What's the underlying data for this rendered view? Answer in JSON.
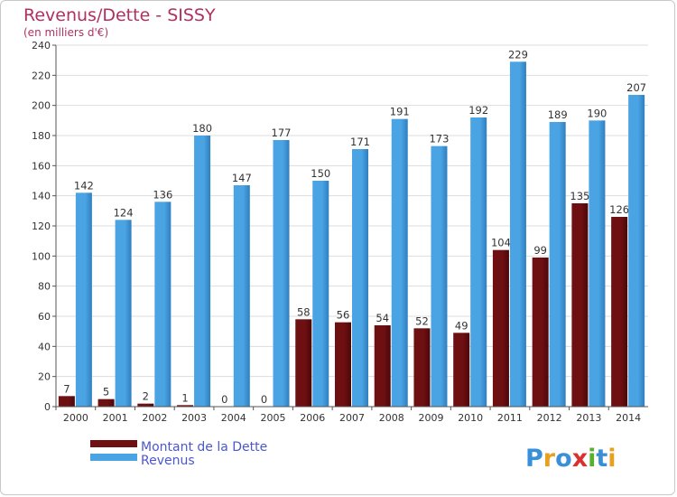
{
  "chart_data": {
    "type": "bar",
    "title": "Revenus/Dette - SISSY",
    "subtitle": "(en milliers d'€)",
    "categories": [
      "2000",
      "2001",
      "2002",
      "2003",
      "2004",
      "2005",
      "2006",
      "2007",
      "2008",
      "2009",
      "2010",
      "2011",
      "2012",
      "2013",
      "2014"
    ],
    "series": [
      {
        "name": "Montant de la Dette",
        "color": "#6e0f12",
        "values": [
          7,
          5,
          2,
          1,
          0,
          0,
          58,
          56,
          54,
          52,
          49,
          104,
          99,
          135,
          126
        ]
      },
      {
        "name": "Revenus",
        "color": "#4aa3e2",
        "values": [
          142,
          124,
          136,
          180,
          147,
          177,
          150,
          171,
          191,
          173,
          192,
          229,
          189,
          190,
          207
        ]
      }
    ],
    "ylim": [
      0,
      240
    ],
    "yticks": [
      0,
      20,
      40,
      60,
      80,
      100,
      120,
      140,
      160,
      180,
      200,
      220,
      240
    ],
    "grid": true,
    "legend_position": "bottom-left"
  },
  "logo": {
    "letters": [
      {
        "char": "P",
        "color": "#3a8fd9"
      },
      {
        "char": "r",
        "color": "#e8a020"
      },
      {
        "char": "o",
        "color": "#3a8fd9"
      },
      {
        "char": "x",
        "color": "#d93030"
      },
      {
        "char": "i",
        "color": "#58b030"
      },
      {
        "char": "t",
        "color": "#3a8fd9"
      },
      {
        "char": "i",
        "color": "#e8a020"
      }
    ]
  }
}
